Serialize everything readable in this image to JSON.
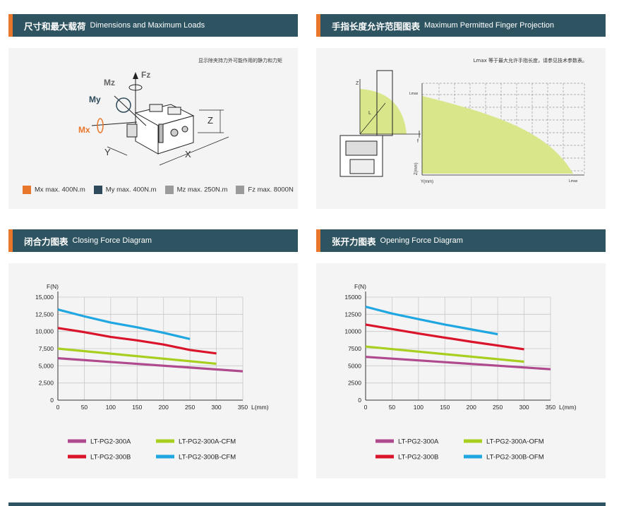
{
  "panels": {
    "dimensions": {
      "title_zh": "尺寸和最大载荷",
      "title_en": "Dimensions and Maximum Loads",
      "note": "显示除夹持力外可能作用的静力和力矩"
    },
    "finger": {
      "title_zh": "手指长度允许范围图表",
      "title_en": "Maximum Permitted Finger Projection",
      "note": "Lmax 等于最大允许手指长度，请参见技术参数表。"
    },
    "closing": {
      "title_zh": "闭合力图表",
      "title_en": "Closing Force Diagram"
    },
    "opening": {
      "title_zh": "张开力图表",
      "title_en": "Opening Force Diagram"
    }
  },
  "diagram_labels": {
    "mz": "Mz",
    "fz": "Fz",
    "my": "My",
    "mx": "Mx",
    "z": "Z",
    "y": "Y",
    "x": "X"
  },
  "finger_labels": {
    "lmax_top": "Lmax",
    "lmax_bottom": "Lmax",
    "z_axis": "Z(mm)",
    "y_axis": "Y(mm)",
    "small_z": "Z",
    "small_l": "L",
    "small_f": "f"
  },
  "load_legend": [
    {
      "label": "Mx max. 400N.m",
      "color": "#e8762b"
    },
    {
      "label": "My max. 400N.m",
      "color": "#2f4a5a"
    },
    {
      "label": "Mz max. 250N.m",
      "color": "#9a9a9a"
    },
    {
      "label": "Fz max. 8000N",
      "color": "#9a9a9a"
    }
  ],
  "colors": {
    "header": "#2f5461",
    "accent": "#e8762b",
    "panel_bg": "#f4f4f4",
    "finger_fill": "#d9e68a"
  },
  "chart_data": [
    {
      "type": "line",
      "ylabel": "F(N)",
      "xlabel": "L(mm)",
      "xlim": [
        0,
        350
      ],
      "ylim": [
        0,
        15000
      ],
      "x_ticks": [
        "0",
        "50",
        "100",
        "150",
        "200",
        "250",
        "300",
        "350"
      ],
      "y_ticks": [
        "0",
        "2,500",
        "5,000",
        "7,500",
        "10,000",
        "12,500",
        "15,000"
      ],
      "grid": true,
      "legend_position": "bottom",
      "series": [
        {
          "name": "LT-PG2-300A",
          "color": "#b04a8e",
          "x": [
            0,
            350
          ],
          "y": [
            6100,
            4200
          ]
        },
        {
          "name": "LT-PG2-300B",
          "color": "#d9142b",
          "x": [
            0,
            50,
            100,
            150,
            200,
            250,
            300
          ],
          "y": [
            10500,
            9900,
            9200,
            8700,
            8100,
            7300,
            6800
          ]
        },
        {
          "name": "LT-PG2-300A-CFM",
          "color": "#a8cf1f",
          "x": [
            0,
            300
          ],
          "y": [
            7500,
            5300
          ]
        },
        {
          "name": "LT-PG2-300B-CFM",
          "color": "#20a6e0",
          "x": [
            0,
            50,
            100,
            150,
            200,
            250
          ],
          "y": [
            13200,
            12200,
            11300,
            10600,
            9800,
            8900
          ]
        }
      ]
    },
    {
      "type": "line",
      "ylabel": "F(N)",
      "xlabel": "L(mm)",
      "xlim": [
        0,
        350
      ],
      "ylim": [
        0,
        15000
      ],
      "x_ticks": [
        "0",
        "50",
        "100",
        "150",
        "200",
        "250",
        "300",
        "350"
      ],
      "y_ticks": [
        "0",
        "2500",
        "5000",
        "7500",
        "10000",
        "12500",
        "15000"
      ],
      "grid": true,
      "legend_position": "bottom",
      "series": [
        {
          "name": "LT-PG2-300A",
          "color": "#b04a8e",
          "x": [
            0,
            350
          ],
          "y": [
            6300,
            4500
          ]
        },
        {
          "name": "LT-PG2-300B",
          "color": "#d9142b",
          "x": [
            0,
            100,
            200,
            300
          ],
          "y": [
            11000,
            9700,
            8500,
            7400
          ]
        },
        {
          "name": "LT-PG2-300A-OFM",
          "color": "#a8cf1f",
          "x": [
            0,
            300
          ],
          "y": [
            7800,
            5600
          ]
        },
        {
          "name": "LT-PG2-300B-OFM",
          "color": "#20a6e0",
          "x": [
            0,
            50,
            100,
            150,
            200,
            250
          ],
          "y": [
            13600,
            12600,
            11800,
            11000,
            10300,
            9600
          ]
        }
      ]
    }
  ]
}
